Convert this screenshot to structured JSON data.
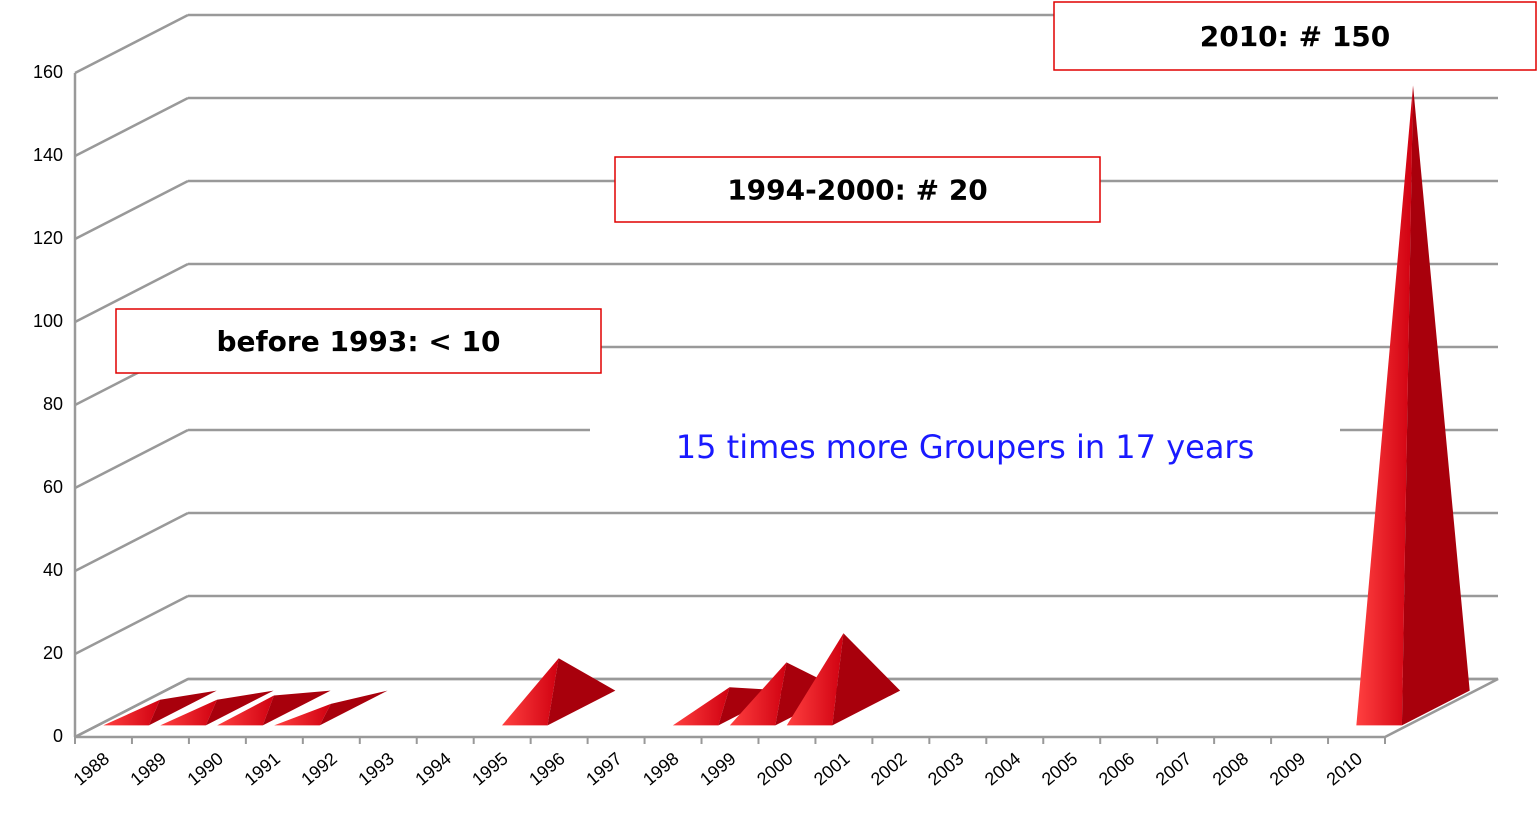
{
  "chart_data": {
    "type": "pyramid3d",
    "categories": [
      "1988",
      "1989",
      "1990",
      "1991",
      "1992",
      "1993",
      "1994",
      "1995",
      "1996",
      "1997",
      "1998",
      "1999",
      "2000",
      "2001",
      "2002",
      "2003",
      "2004",
      "2005",
      "2006",
      "2007",
      "2008",
      "2009",
      "2010"
    ],
    "values": [
      2,
      2,
      3,
      1,
      0,
      0,
      0,
      12,
      0,
      0,
      5,
      11,
      18,
      0,
      0,
      0,
      0,
      0,
      0,
      0,
      0,
      0,
      150
    ],
    "color": "#e0101a",
    "ylim": [
      0,
      160
    ],
    "yticks": [
      0,
      20,
      40,
      60,
      80,
      100,
      120,
      140,
      160
    ],
    "grid": true,
    "annotations": [
      "before 1993: < 10",
      "1994-2000: # 20",
      "2010: # 150",
      "15 times more Groupers in 17 years"
    ]
  }
}
